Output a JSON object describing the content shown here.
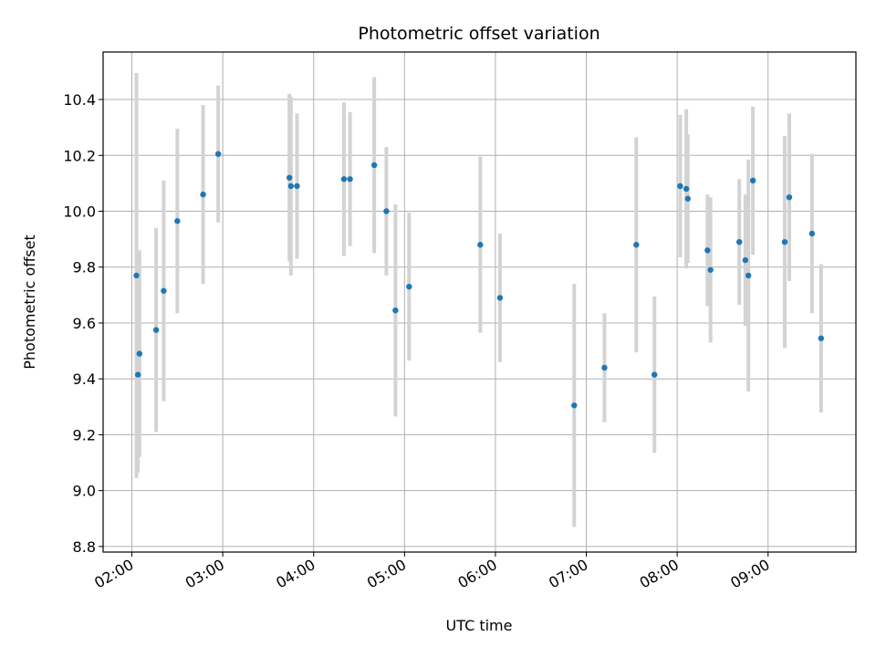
{
  "chart_data": {
    "type": "scatter",
    "title": "Photometric offset variation",
    "xlabel": "UTC time",
    "ylabel": "Photometric offset",
    "x_tick_labels": [
      "02:00",
      "03:00",
      "04:00",
      "05:00",
      "06:00",
      "07:00",
      "08:00",
      "09:00"
    ],
    "x_tick_hours": [
      2,
      3,
      4,
      5,
      6,
      7,
      8,
      9
    ],
    "y_ticks": [
      8.8,
      9.0,
      9.2,
      9.4,
      9.6,
      9.8,
      10.0,
      10.2,
      10.4
    ],
    "y_tick_labels": [
      "8.8",
      "9.0",
      "9.2",
      "9.4",
      "9.6",
      "9.8",
      "10.0",
      "10.2",
      "10.4"
    ],
    "xlim": [
      "01:41",
      "09:58"
    ],
    "ylim": [
      8.78,
      10.57
    ],
    "grid": true,
    "point_color": "#1f77b4",
    "errorbar_color": "#d3d3d3",
    "points": [
      {
        "time": "02:03",
        "y": 9.77,
        "err": 0.725
      },
      {
        "time": "02:04",
        "y": 9.415,
        "err": 0.35
      },
      {
        "time": "02:05",
        "y": 9.49,
        "err": 0.37
      },
      {
        "time": "02:16",
        "y": 9.575,
        "err": 0.365
      },
      {
        "time": "02:21",
        "y": 9.715,
        "err": 0.395
      },
      {
        "time": "02:30",
        "y": 9.965,
        "err": 0.33
      },
      {
        "time": "02:47",
        "y": 10.06,
        "err": 0.32
      },
      {
        "time": "02:57",
        "y": 10.205,
        "err": 0.245
      },
      {
        "time": "03:44",
        "y": 10.12,
        "err": 0.3
      },
      {
        "time": "03:45",
        "y": 10.09,
        "err": 0.32
      },
      {
        "time": "03:49",
        "y": 10.09,
        "err": 0.26
      },
      {
        "time": "04:20",
        "y": 10.115,
        "err": 0.275
      },
      {
        "time": "04:24",
        "y": 10.115,
        "err": 0.24
      },
      {
        "time": "04:40",
        "y": 10.165,
        "err": 0.315
      },
      {
        "time": "04:48",
        "y": 10.0,
        "err": 0.23
      },
      {
        "time": "04:54",
        "y": 9.645,
        "err": 0.38
      },
      {
        "time": "05:03",
        "y": 9.73,
        "err": 0.265
      },
      {
        "time": "05:50",
        "y": 9.88,
        "err": 0.315
      },
      {
        "time": "06:03",
        "y": 9.69,
        "err": 0.23
      },
      {
        "time": "06:52",
        "y": 9.305,
        "err": 0.435
      },
      {
        "time": "07:12",
        "y": 9.44,
        "err": 0.195
      },
      {
        "time": "07:33",
        "y": 9.88,
        "err": 0.385
      },
      {
        "time": "07:45",
        "y": 9.415,
        "err": 0.28
      },
      {
        "time": "08:02",
        "y": 10.09,
        "err": 0.255
      },
      {
        "time": "08:06",
        "y": 10.08,
        "err": 0.285
      },
      {
        "time": "08:07",
        "y": 10.045,
        "err": 0.23
      },
      {
        "time": "08:20",
        "y": 9.86,
        "err": 0.2
      },
      {
        "time": "08:22",
        "y": 9.79,
        "err": 0.26
      },
      {
        "time": "08:41",
        "y": 9.89,
        "err": 0.225
      },
      {
        "time": "08:45",
        "y": 9.825,
        "err": 0.235
      },
      {
        "time": "08:47",
        "y": 9.77,
        "err": 0.415
      },
      {
        "time": "08:50",
        "y": 10.11,
        "err": 0.265
      },
      {
        "time": "09:11",
        "y": 9.89,
        "err": 0.38
      },
      {
        "time": "09:14",
        "y": 10.05,
        "err": 0.3
      },
      {
        "time": "09:29",
        "y": 9.92,
        "err": 0.285
      },
      {
        "time": "09:35",
        "y": 9.545,
        "err": 0.265
      }
    ]
  }
}
